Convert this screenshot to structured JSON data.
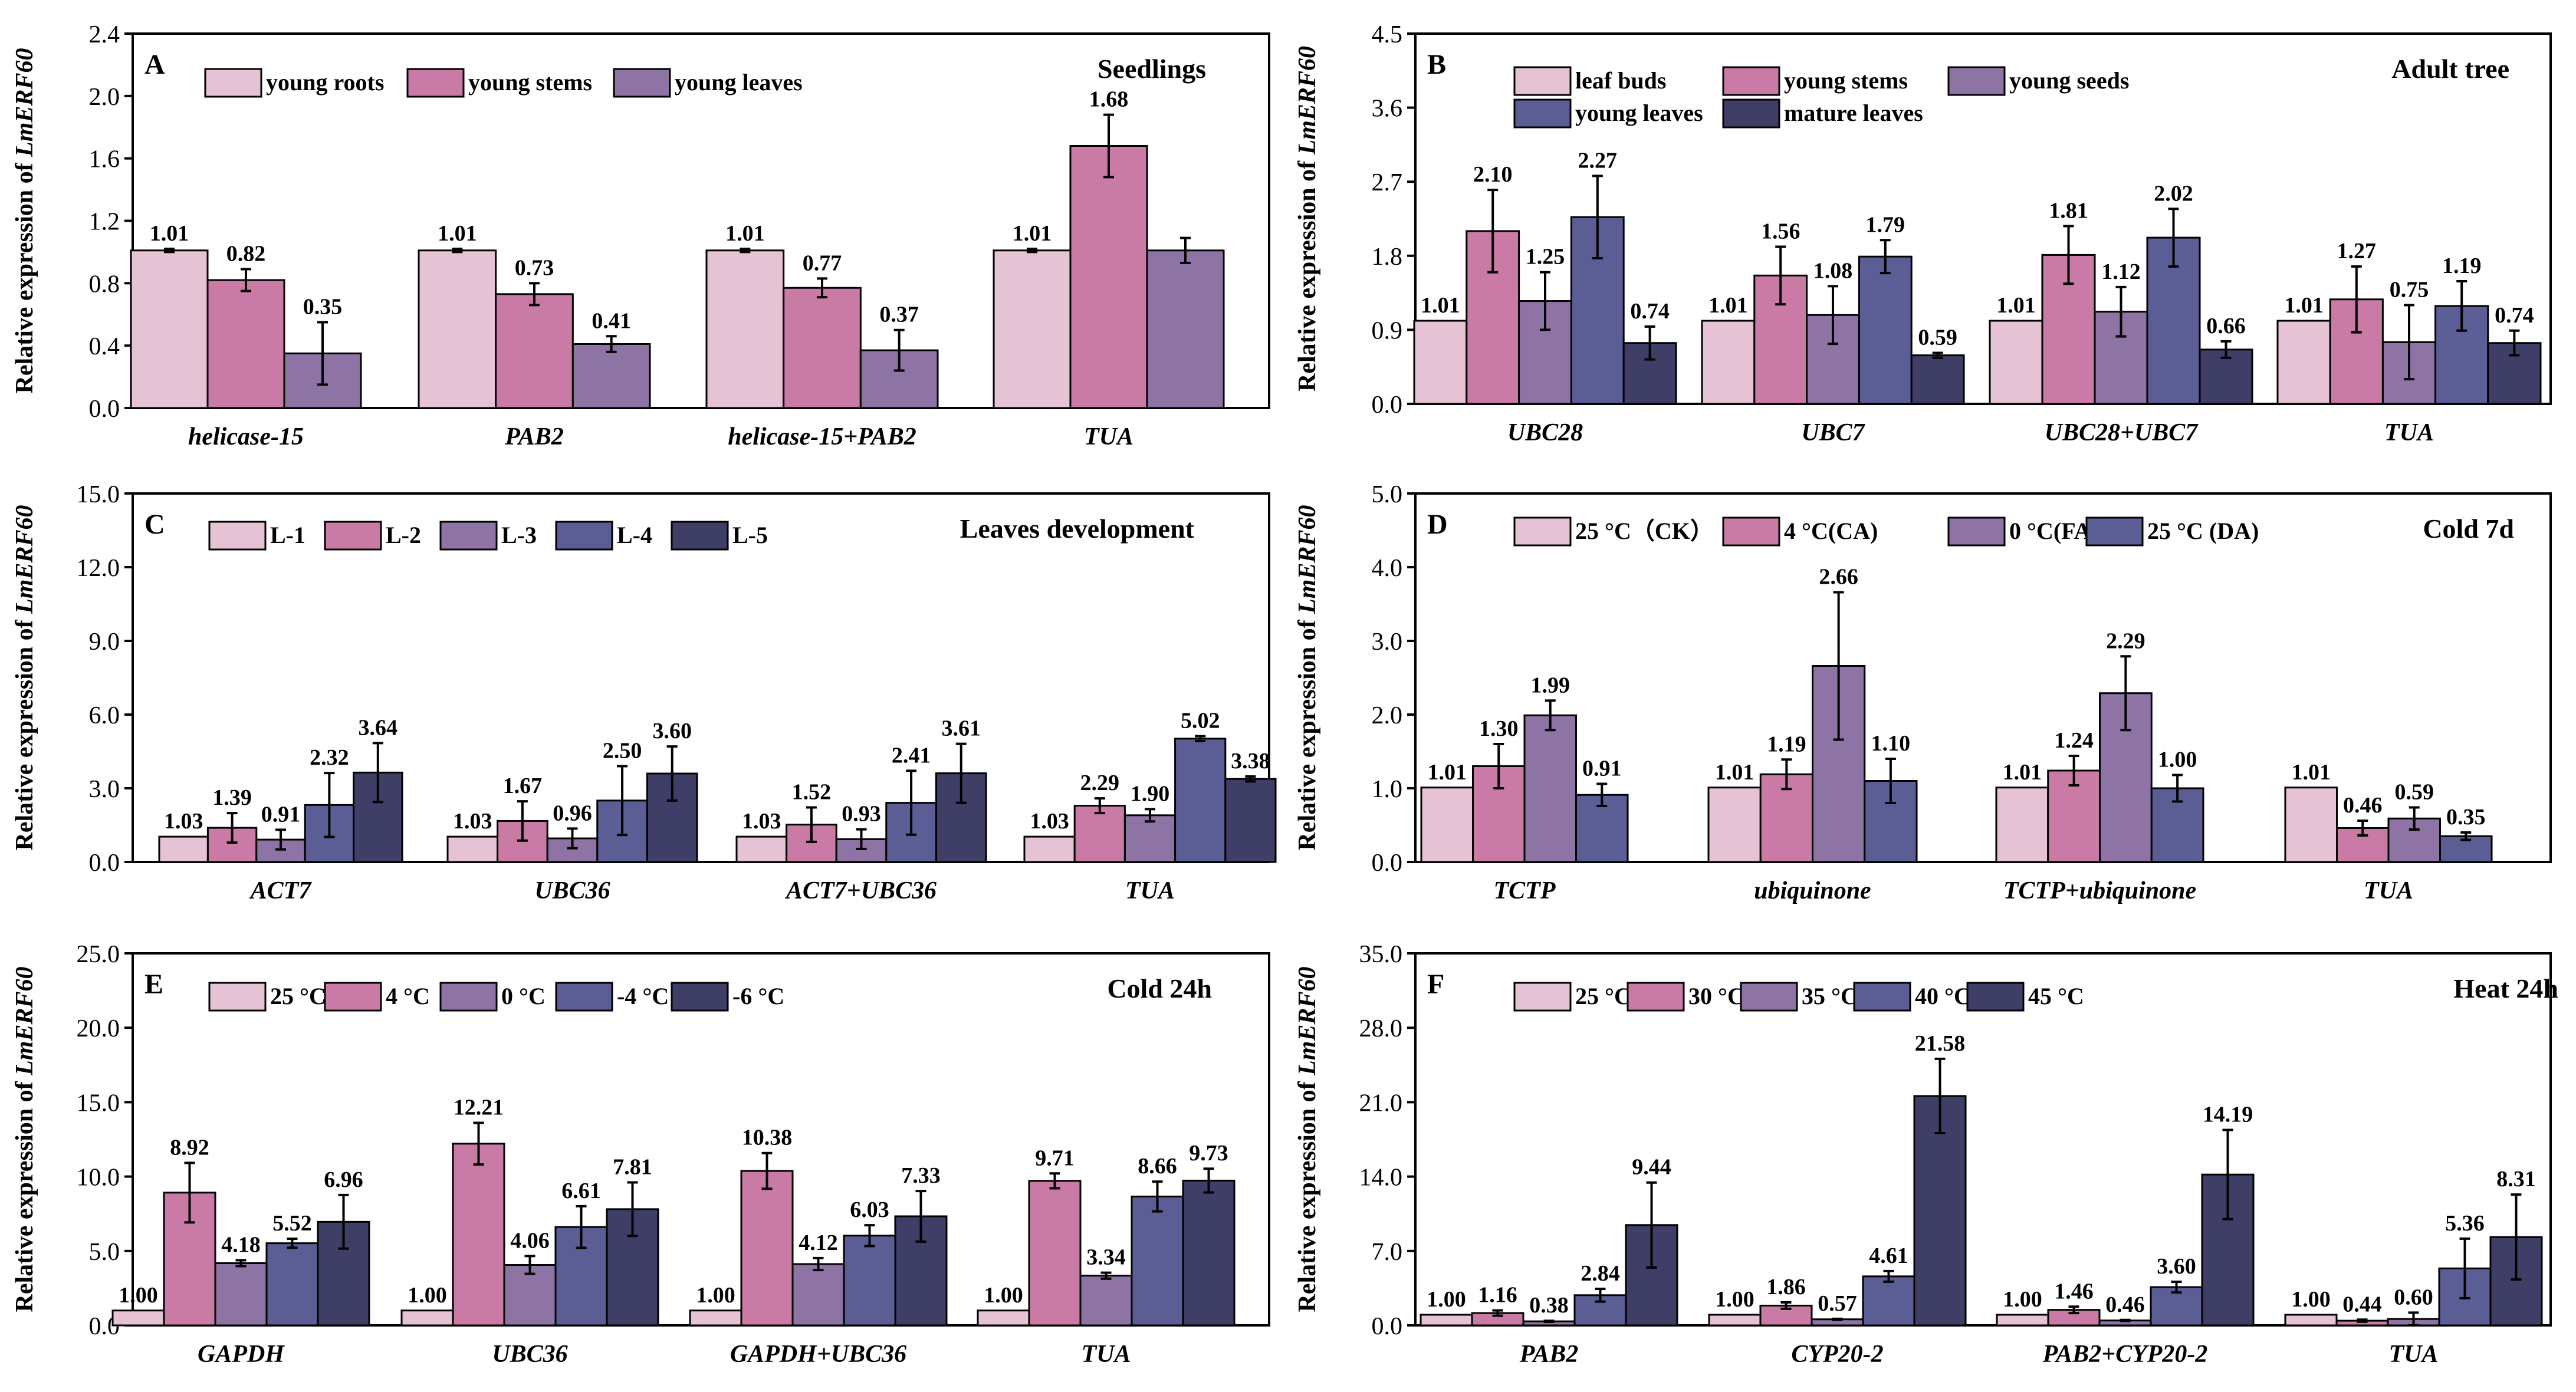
{
  "figure": {
    "y_label_prefix": "Relative expression of "
  },
  "colors": {
    "c1": "#E6C2D5",
    "c2": "#C97BA5",
    "c3": "#8E74A5",
    "c4": "#5B5D95",
    "c5": "#3E3E67"
  },
  "chart_data": [
    {
      "type": "bar",
      "panel": "A",
      "note": "Seedlings",
      "ylabel": "Relative expression of LmERF60",
      "ylabel_gene": "LmERF60",
      "ylim": [
        0,
        2.4
      ],
      "yticks": [
        "0.0",
        "0.4",
        "0.8",
        "1.2",
        "1.6",
        "2.0",
        "2.4"
      ],
      "categories": [
        "helicase-15",
        "PAB2",
        "helicase-15+PAB2",
        "TUA"
      ],
      "legend_rows": [
        [
          "young roots",
          "young stems",
          "young leaves"
        ]
      ],
      "series": [
        {
          "name": "young roots",
          "color": "#E6C2D5",
          "values": [
            1.01,
            1.01,
            1.01,
            1.01
          ],
          "errors": [
            0.01,
            0.01,
            0.01,
            0.01
          ],
          "labels": [
            "1.01",
            "1.01",
            "1.01",
            "1.01"
          ]
        },
        {
          "name": "young stems",
          "color": "#C97BA5",
          "values": [
            0.82,
            0.73,
            0.77,
            1.68
          ],
          "errors": [
            0.07,
            0.07,
            0.06,
            0.2
          ],
          "labels": [
            "0.82",
            "0.73",
            "0.77",
            "1.68"
          ]
        },
        {
          "name": "young leaves",
          "color": "#8E74A5",
          "values": [
            0.35,
            0.41,
            0.37,
            1.01
          ],
          "errors": [
            0.2,
            0.05,
            0.13,
            0.08
          ],
          "labels": [
            "0.35",
            "0.41",
            "0.37",
            ""
          ]
        }
      ]
    },
    {
      "type": "bar",
      "panel": "B",
      "note": "Adult tree",
      "ylabel": "Relative expression of LmERF60",
      "ylabel_gene": "LmERF60",
      "ylim": [
        0,
        4.5
      ],
      "yticks": [
        "0.0",
        "0.9",
        "1.8",
        "2.7",
        "3.6",
        "4.5"
      ],
      "categories": [
        "UBC28",
        "UBC7",
        "UBC28+UBC7",
        "TUA"
      ],
      "legend_rows": [
        [
          "leaf buds",
          "young stems",
          "young seeds"
        ],
        [
          "young leaves",
          "mature leaves"
        ]
      ],
      "series": [
        {
          "name": "leaf buds",
          "color": "#E6C2D5",
          "values": [
            1.01,
            1.01,
            1.01,
            1.01
          ],
          "errors": [
            0,
            0,
            0,
            0
          ],
          "labels": [
            "1.01",
            "1.01",
            "1.01",
            "1.01"
          ]
        },
        {
          "name": "young stems",
          "color": "#C97BA5",
          "values": [
            2.1,
            1.56,
            1.81,
            1.27
          ],
          "errors": [
            0.5,
            0.35,
            0.35,
            0.4
          ],
          "labels": [
            "2.10",
            "1.56",
            "1.81",
            "1.27"
          ]
        },
        {
          "name": "young seeds",
          "color": "#8E74A5",
          "values": [
            1.25,
            1.08,
            1.12,
            0.75
          ],
          "errors": [
            0.35,
            0.35,
            0.3,
            0.45
          ],
          "labels": [
            "1.25",
            "1.08",
            "1.12",
            "0.75"
          ]
        },
        {
          "name": "young leaves",
          "color": "#5B5D95",
          "values": [
            2.27,
            1.79,
            2.02,
            1.19
          ],
          "errors": [
            0.5,
            0.2,
            0.35,
            0.3
          ],
          "labels": [
            "2.27",
            "1.79",
            "2.02",
            "1.19"
          ]
        },
        {
          "name": "mature leaves",
          "color": "#3E3E67",
          "values": [
            0.74,
            0.59,
            0.66,
            0.74
          ],
          "errors": [
            0.2,
            0.03,
            0.1,
            0.15
          ],
          "labels": [
            "0.74",
            "0.59",
            "0.66",
            "0.74"
          ]
        }
      ]
    },
    {
      "type": "bar",
      "panel": "C",
      "note": "Leaves development",
      "ylabel": "Relative expression of LmERF60",
      "ylabel_gene": "LmERF60",
      "ylim": [
        0,
        15
      ],
      "yticks": [
        "0.0",
        "3.0",
        "6.0",
        "9.0",
        "12.0",
        "15.0"
      ],
      "categories": [
        "ACT7",
        "UBC36",
        "ACT7+UBC36",
        "TUA"
      ],
      "legend_rows": [
        [
          "L-1",
          "L-2",
          "L-3",
          "L-4",
          "L-5"
        ]
      ],
      "series": [
        {
          "name": "L-1",
          "color": "#E6C2D5",
          "values": [
            1.03,
            1.03,
            1.03,
            1.03
          ],
          "errors": [
            0,
            0,
            0,
            0
          ],
          "labels": [
            "1.03",
            "1.03",
            "1.03",
            "1.03"
          ]
        },
        {
          "name": "L-2",
          "color": "#C97BA5",
          "values": [
            1.39,
            1.67,
            1.52,
            2.29
          ],
          "errors": [
            0.6,
            0.8,
            0.7,
            0.3
          ],
          "labels": [
            "1.39",
            "1.67",
            "1.52",
            "2.29"
          ]
        },
        {
          "name": "L-3",
          "color": "#8E74A5",
          "values": [
            0.91,
            0.96,
            0.93,
            1.9
          ],
          "errors": [
            0.4,
            0.4,
            0.4,
            0.25
          ],
          "labels": [
            "0.91",
            "0.96",
            "0.93",
            "1.90"
          ]
        },
        {
          "name": "L-4",
          "color": "#5B5D95",
          "values": [
            2.32,
            2.5,
            2.41,
            5.02
          ],
          "errors": [
            1.3,
            1.4,
            1.3,
            0.1
          ],
          "labels": [
            "2.32",
            "2.50",
            "2.41",
            "5.02"
          ]
        },
        {
          "name": "L-5",
          "color": "#3E3E67",
          "values": [
            3.64,
            3.6,
            3.61,
            3.38
          ],
          "errors": [
            1.2,
            1.1,
            1.2,
            0.1
          ],
          "labels": [
            "3.64",
            "3.60",
            "3.61",
            "3.38"
          ]
        }
      ]
    },
    {
      "type": "bar",
      "panel": "D",
      "note": "Cold 7d",
      "ylabel": "Relative expression of LmERF60",
      "ylabel_gene": "LmERF60",
      "ylim": [
        0,
        5.0
      ],
      "yticks": [
        "0.0",
        "1.0",
        "2.0",
        "3.0",
        "4.0",
        "5.0"
      ],
      "categories": [
        "TCTP",
        "ubiquinone",
        "TCTP+ubiquinone",
        "TUA"
      ],
      "legend_rows": [
        [
          "25 °C（CK）",
          "4 °C(CA)",
          "0 °C(FA)",
          "25 °C (DA)"
        ]
      ],
      "series": [
        {
          "name": "25 °C（CK）",
          "color": "#E6C2D5",
          "values": [
            1.01,
            1.01,
            1.01,
            1.01
          ],
          "errors": [
            0,
            0,
            0,
            0
          ],
          "labels": [
            "1.01",
            "1.01",
            "1.01",
            "1.01"
          ]
        },
        {
          "name": "4 °C(CA)",
          "color": "#C97BA5",
          "values": [
            1.3,
            1.19,
            1.24,
            0.46
          ],
          "errors": [
            0.3,
            0.2,
            0.2,
            0.1
          ],
          "labels": [
            "1.30",
            "1.19",
            "1.24",
            "0.46"
          ]
        },
        {
          "name": "0 °C(FA)",
          "color": "#8E74A5",
          "values": [
            1.99,
            2.66,
            2.29,
            0.59
          ],
          "errors": [
            0.2,
            1.0,
            0.5,
            0.15
          ],
          "labels": [
            "1.99",
            "2.66",
            "2.29",
            "0.59"
          ]
        },
        {
          "name": "25 °C (DA)",
          "color": "#5B5D95",
          "values": [
            0.91,
            1.1,
            1.0,
            0.35
          ],
          "errors": [
            0.15,
            0.3,
            0.18,
            0.05
          ],
          "labels": [
            "0.91",
            "1.10",
            "1.00",
            "0.35"
          ]
        }
      ]
    },
    {
      "type": "bar",
      "panel": "E",
      "note": "Cold 24h",
      "ylabel": "Relative expression of LmERF60",
      "ylabel_gene": "LmERF60",
      "ylim": [
        0,
        25
      ],
      "yticks": [
        "0.0",
        "5.0",
        "10.0",
        "15.0",
        "20.0",
        "25.0"
      ],
      "categories": [
        "GAPDH",
        "UBC36",
        "GAPDH+UBC36",
        "TUA"
      ],
      "legend_rows": [
        [
          "25 °C",
          "4 °C",
          "0 °C",
          "-4 °C",
          "-6 °C"
        ]
      ],
      "series": [
        {
          "name": "25 °C",
          "color": "#E6C2D5",
          "values": [
            1.0,
            1.0,
            1.0,
            1.0
          ],
          "errors": [
            0,
            0,
            0,
            0
          ],
          "labels": [
            "1.00",
            "1.00",
            "1.00",
            "1.00"
          ]
        },
        {
          "name": "4 °C",
          "color": "#C97BA5",
          "values": [
            8.92,
            12.21,
            10.38,
            9.71
          ],
          "errors": [
            2.0,
            1.4,
            1.2,
            0.5
          ],
          "labels": [
            "8.92",
            "12.21",
            "10.38",
            "9.71"
          ]
        },
        {
          "name": "0 °C",
          "color": "#8E74A5",
          "values": [
            4.18,
            4.06,
            4.12,
            3.34
          ],
          "errors": [
            0.2,
            0.6,
            0.4,
            0.2
          ],
          "labels": [
            "4.18",
            "4.06",
            "4.12",
            "3.34"
          ]
        },
        {
          "name": "-4 °C",
          "color": "#5B5D95",
          "values": [
            5.52,
            6.61,
            6.03,
            8.66
          ],
          "errors": [
            0.3,
            1.4,
            0.7,
            1.0
          ],
          "labels": [
            "5.52",
            "6.61",
            "6.03",
            "8.66"
          ]
        },
        {
          "name": "-6 °C",
          "color": "#3E3E67",
          "values": [
            6.96,
            7.81,
            7.33,
            9.73
          ],
          "errors": [
            1.8,
            1.8,
            1.7,
            0.8
          ],
          "labels": [
            "6.96",
            "7.81",
            "7.33",
            "9.73"
          ]
        }
      ]
    },
    {
      "type": "bar",
      "panel": "F",
      "note": "Heat 24h",
      "ylabel": "Relative expression of LmERF60",
      "ylabel_gene": "LmERF60",
      "ylim": [
        0,
        35
      ],
      "yticks": [
        "0.0",
        "7.0",
        "14.0",
        "21.0",
        "28.0",
        "35.0"
      ],
      "categories": [
        "PAB2",
        "CYP20-2",
        "PAB2+CYP20-2",
        "TUA"
      ],
      "legend_rows": [
        [
          "25 °C",
          "30 °C",
          "35 °C",
          "40 °C",
          "45 °C"
        ]
      ],
      "series": [
        {
          "name": "25 °C",
          "color": "#E6C2D5",
          "values": [
            1.0,
            1.0,
            1.0,
            1.0
          ],
          "errors": [
            0,
            0,
            0,
            0
          ],
          "labels": [
            "1.00",
            "1.00",
            "1.00",
            "1.00"
          ]
        },
        {
          "name": "30 °C",
          "color": "#C97BA5",
          "values": [
            1.16,
            1.86,
            1.46,
            0.44
          ],
          "errors": [
            0.25,
            0.3,
            0.3,
            0.1
          ],
          "labels": [
            "1.16",
            "1.86",
            "1.46",
            "0.44"
          ]
        },
        {
          "name": "35 °C",
          "color": "#8E74A5",
          "values": [
            0.38,
            0.57,
            0.46,
            0.6
          ],
          "errors": [
            0.05,
            0.05,
            0.05,
            0.6
          ],
          "labels": [
            "0.38",
            "0.57",
            "0.46",
            "0.60"
          ]
        },
        {
          "name": "40 °C",
          "color": "#5B5D95",
          "values": [
            2.84,
            4.61,
            3.6,
            5.36
          ],
          "errors": [
            0.6,
            0.5,
            0.5,
            2.8
          ],
          "labels": [
            "2.84",
            "4.61",
            "3.60",
            "5.36"
          ]
        },
        {
          "name": "45 °C",
          "color": "#3E3E67",
          "values": [
            9.44,
            21.58,
            14.19,
            8.31
          ],
          "errors": [
            4.0,
            3.5,
            4.2,
            4.0
          ],
          "labels": [
            "9.44",
            "21.58",
            "14.19",
            "8.31"
          ]
        }
      ]
    }
  ]
}
